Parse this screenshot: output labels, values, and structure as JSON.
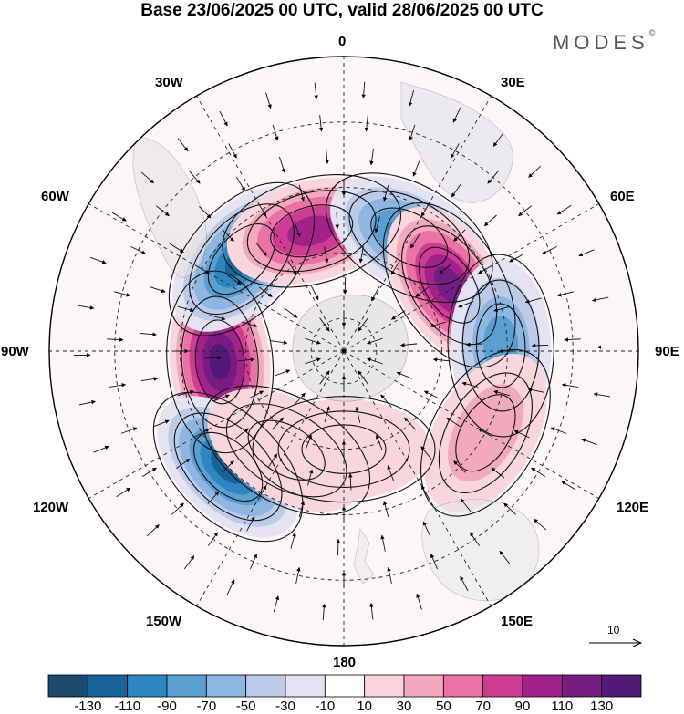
{
  "title": "Base 23/06/2025 00 UTC, valid 28/06/2025 00 UTC",
  "brand": "MODES",
  "brand_mark": "©",
  "longitude_labels": {
    "lon_0": "0",
    "lon_30e": "30E",
    "lon_60e": "60E",
    "lon_90e": "90E",
    "lon_120e": "120E",
    "lon_150e": "150E",
    "lon_180": "180",
    "lon_150w": "150W",
    "lon_120w": "120W",
    "lon_90w": "90W",
    "lon_60w": "60W",
    "lon_30w": "30W"
  },
  "reference_vector": {
    "label": "10",
    "icon": "arrow-right-icon"
  },
  "colorbar": {
    "ticks": [
      "-130",
      "-110",
      "-90",
      "-70",
      "-50",
      "-30",
      "-10",
      "10",
      "30",
      "50",
      "70",
      "90",
      "110",
      "130"
    ],
    "colors": [
      "#1c4a6e",
      "#17649a",
      "#2e86c1",
      "#5a9fd0",
      "#8db6e0",
      "#bccbe8",
      "#e3e3f1",
      "#ffffff",
      "#f9d6dc",
      "#f3a9bd",
      "#ea72a4",
      "#cf3c94",
      "#a3228a",
      "#751d83",
      "#521a76"
    ]
  },
  "anomaly_fields": [
    {
      "lon": -95,
      "lat": 52,
      "value": 140
    },
    {
      "lon": -48,
      "lat": 48,
      "value": -120
    },
    {
      "lon": -15,
      "lat": 52,
      "value": 100
    },
    {
      "lon": 30,
      "lat": 50,
      "value": -90
    },
    {
      "lon": 58,
      "lat": 52,
      "value": 120
    },
    {
      "lon": 88,
      "lat": 42,
      "value": -70
    },
    {
      "lon": -135,
      "lat": 40,
      "value": -110
    },
    {
      "lon": 120,
      "lat": 40,
      "value": 35
    },
    {
      "lon": 180,
      "lat": 60,
      "value": 25
    },
    {
      "lon": -150,
      "lat": 55,
      "value": 20
    }
  ]
}
